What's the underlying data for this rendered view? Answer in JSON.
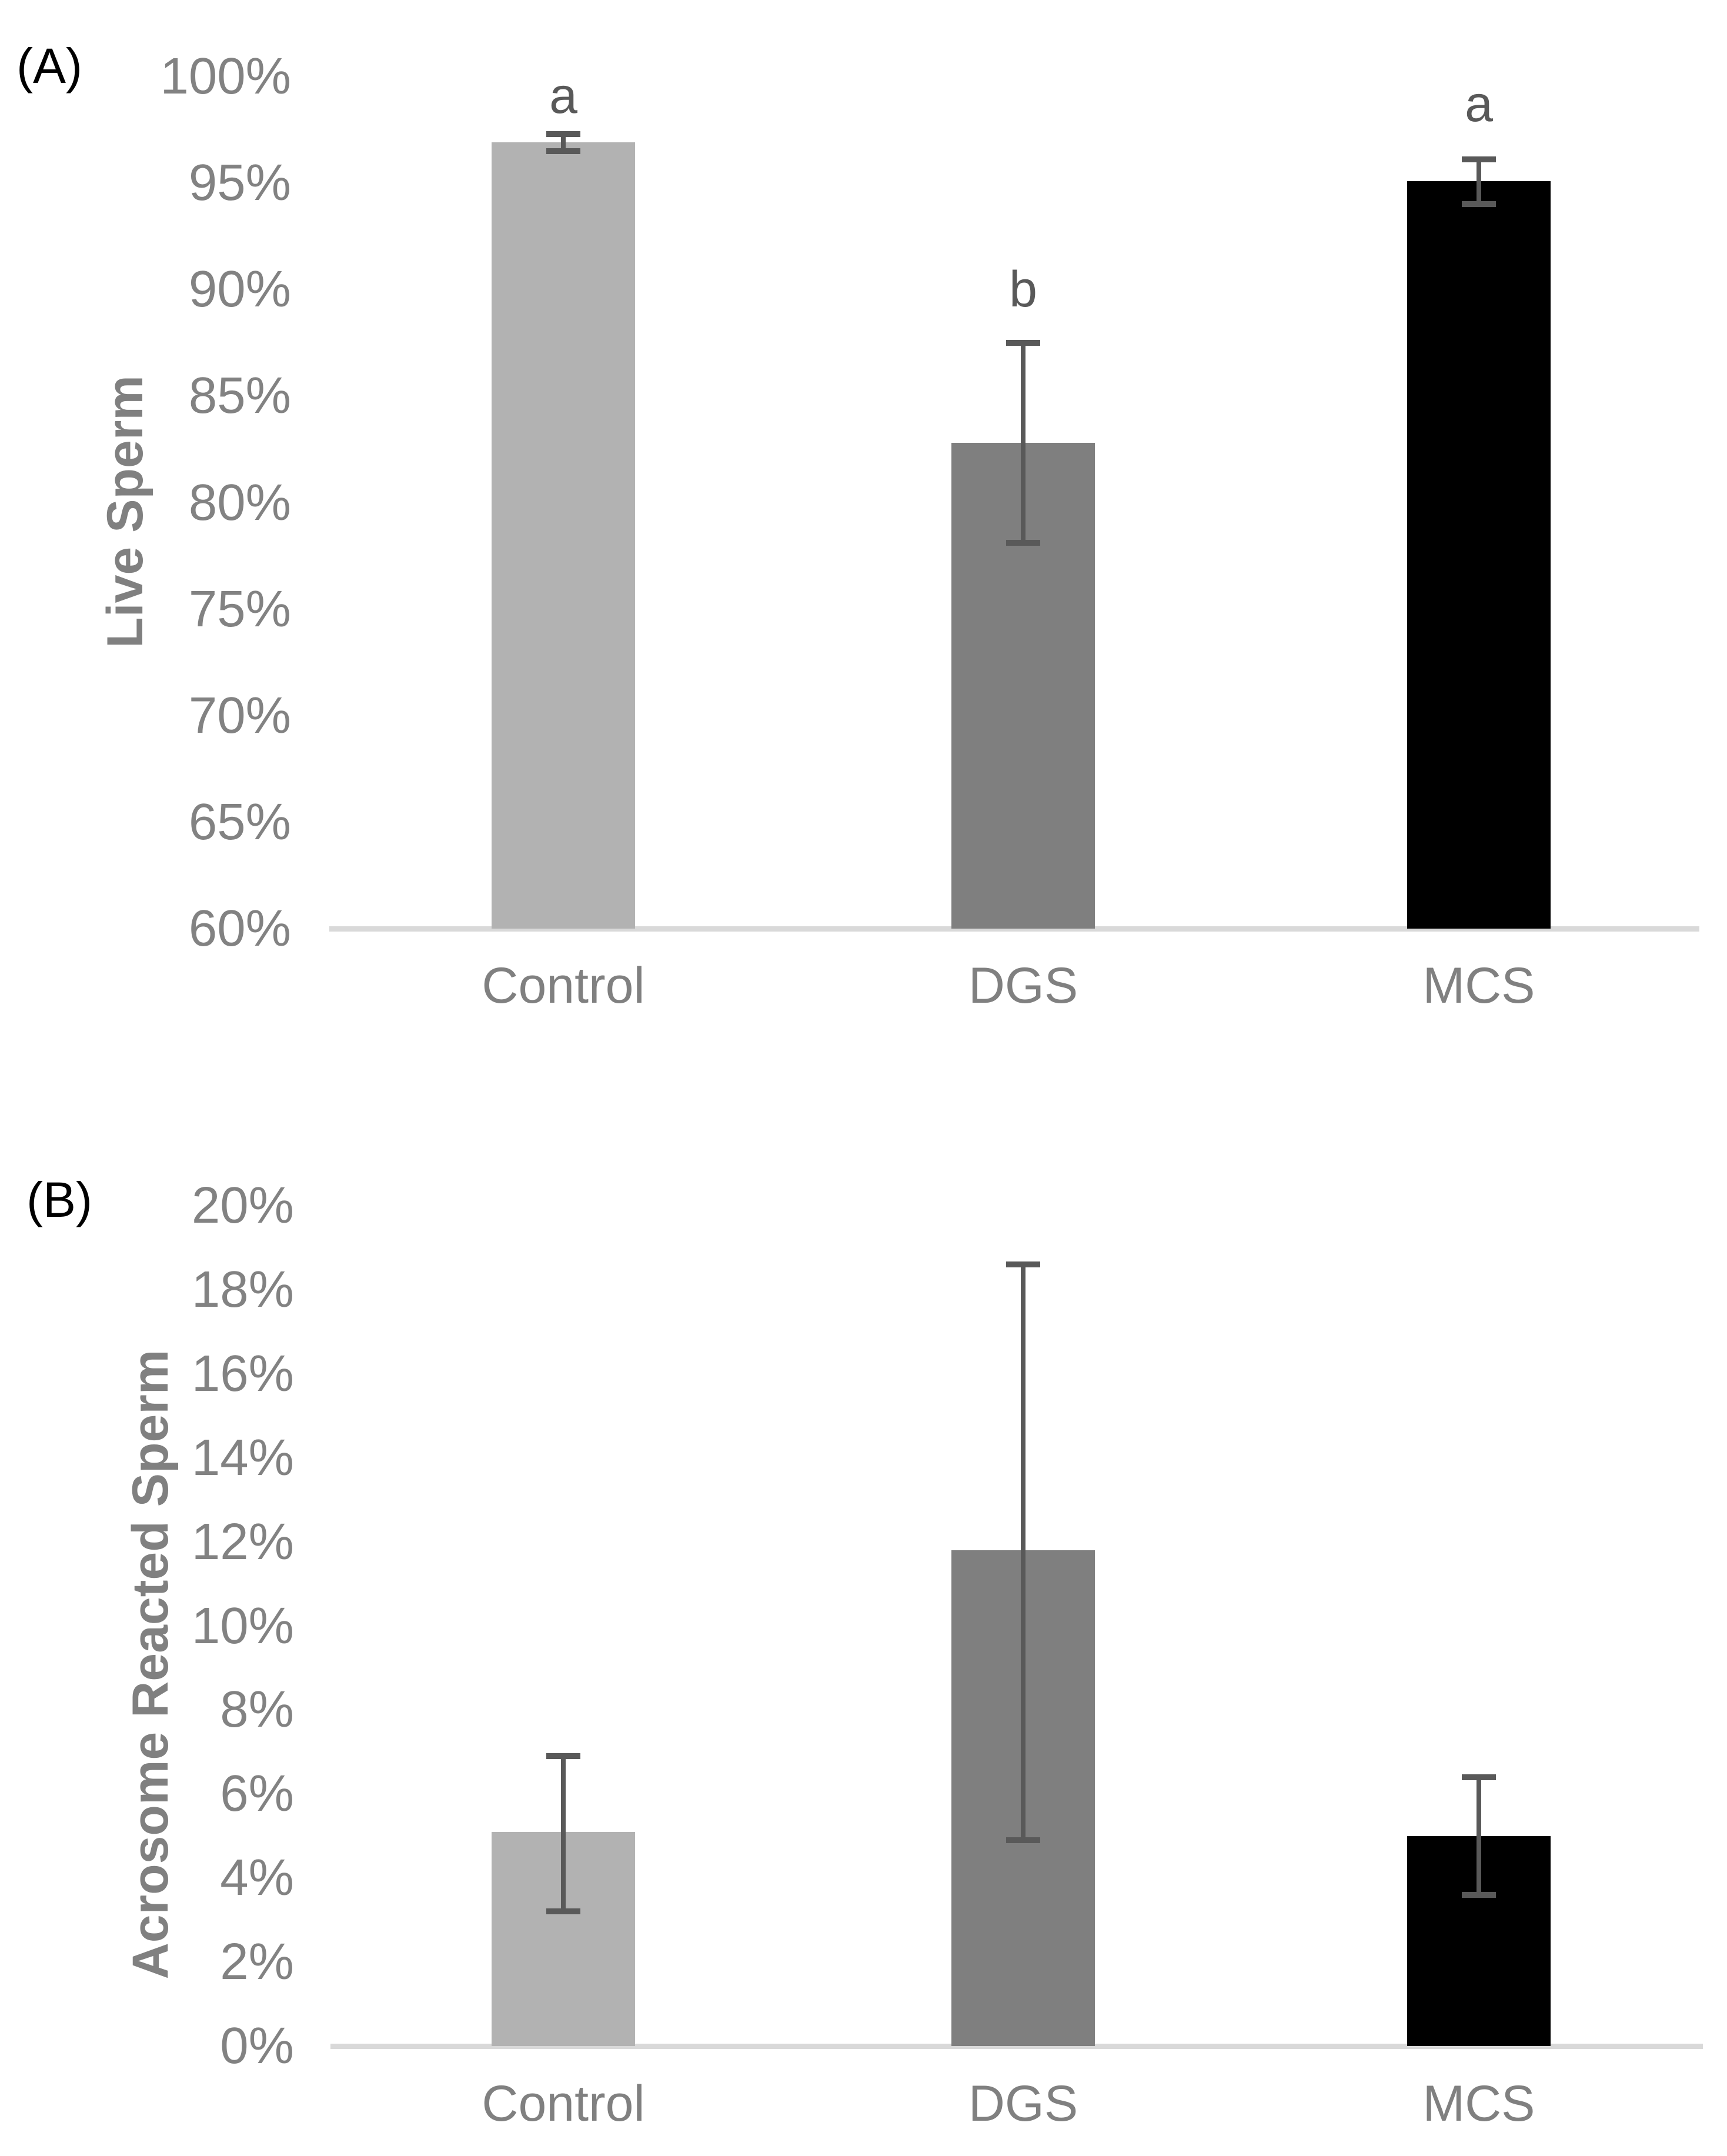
{
  "figure": {
    "background": "#ffffff",
    "panel_a_letter": "(A)",
    "panel_b_letter": "(B)"
  },
  "styles": {
    "error_bar_color": "#595959",
    "sig_letter_color": "#595959",
    "tick_label_color": "#828282",
    "category_label_color": "#808080",
    "axis_title_color": "#808080",
    "axis_line_color": "#d9d9d9",
    "panel_letter_color": "#000000"
  },
  "chart_data": [
    {
      "type": "bar",
      "panel": "(A)",
      "title": "",
      "xlabel": "",
      "ylabel": "Live Sperm",
      "categories": [
        "Control",
        "DGS",
        "MCS"
      ],
      "values": [
        96.9,
        82.8,
        95.1
      ],
      "error_low": [
        96.5,
        78.1,
        94.0
      ],
      "error_high": [
        97.3,
        87.5,
        96.1
      ],
      "sig_letters": [
        "a",
        "b",
        "a"
      ],
      "sig_letter_y": [
        99.1,
        90.0,
        98.7
      ],
      "bar_colors": [
        "#b2b2b2",
        "#7f7f7f",
        "#000000"
      ],
      "ylim": [
        60,
        100
      ],
      "ytick_step": 5,
      "ytick_format": "percent",
      "grid": false,
      "legend": "none"
    },
    {
      "type": "bar",
      "panel": "(B)",
      "title": "",
      "xlabel": "",
      "ylabel": "Acrosome Reacted Sperm",
      "categories": [
        "Control",
        "DGS",
        "MCS"
      ],
      "values": [
        5.1,
        11.8,
        5.0
      ],
      "error_low": [
        3.2,
        4.9,
        3.6
      ],
      "error_high": [
        6.9,
        18.6,
        6.4
      ],
      "sig_letters": [
        "",
        "",
        ""
      ],
      "sig_letter_y": [
        null,
        null,
        null
      ],
      "bar_colors": [
        "#b2b2b2",
        "#7f7f7f",
        "#000000"
      ],
      "ylim": [
        0,
        20
      ],
      "ytick_step": 2,
      "ytick_format": "percent",
      "grid": false,
      "legend": "none"
    }
  ]
}
